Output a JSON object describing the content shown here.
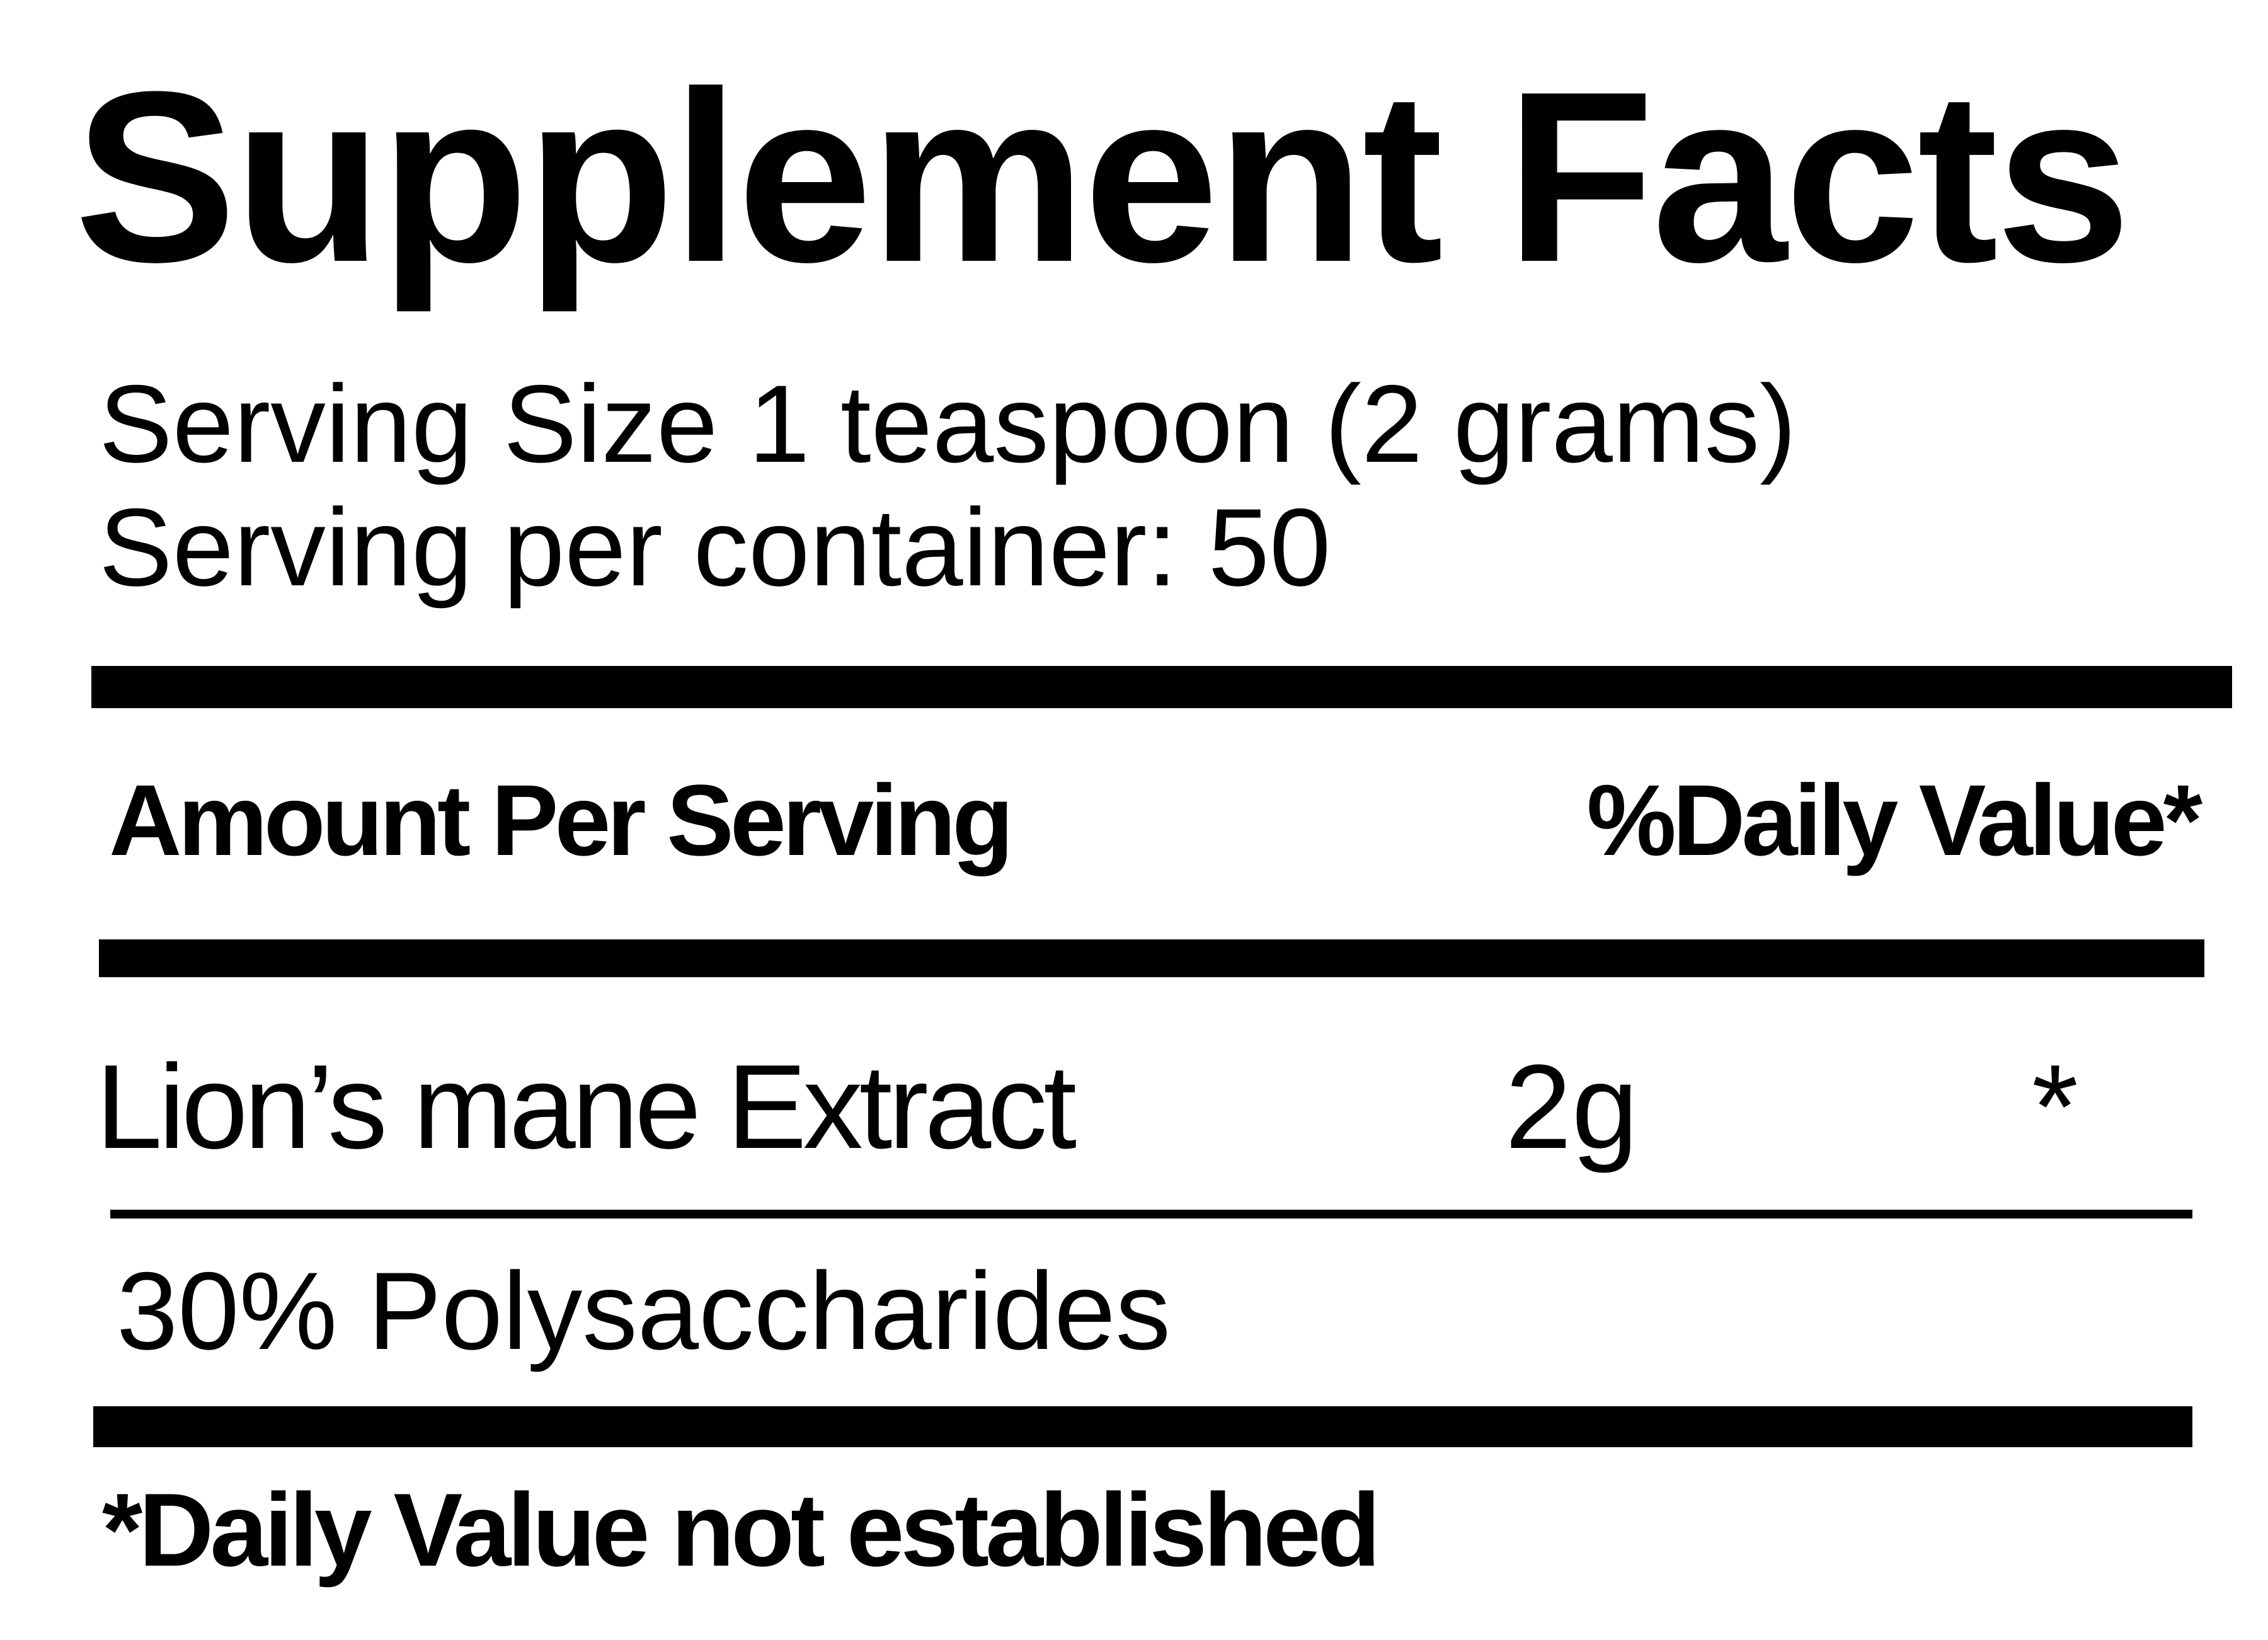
{
  "title": "Supplement Facts",
  "serving": {
    "size": "Serving Size 1 teaspoon (2 grams)",
    "per_container": "Serving per container: 50"
  },
  "header": {
    "amount_label": "Amount Per Serving",
    "dv_label": "%Daily Value*"
  },
  "ingredients": [
    {
      "name": "Lion’s mane Extract",
      "amount": "2g",
      "dv": "*"
    }
  ],
  "sub_ingredient": "30% Polysaccharides",
  "footnote": "*Daily Value not established",
  "colors": {
    "text": "#000000",
    "background": "#ffffff"
  }
}
